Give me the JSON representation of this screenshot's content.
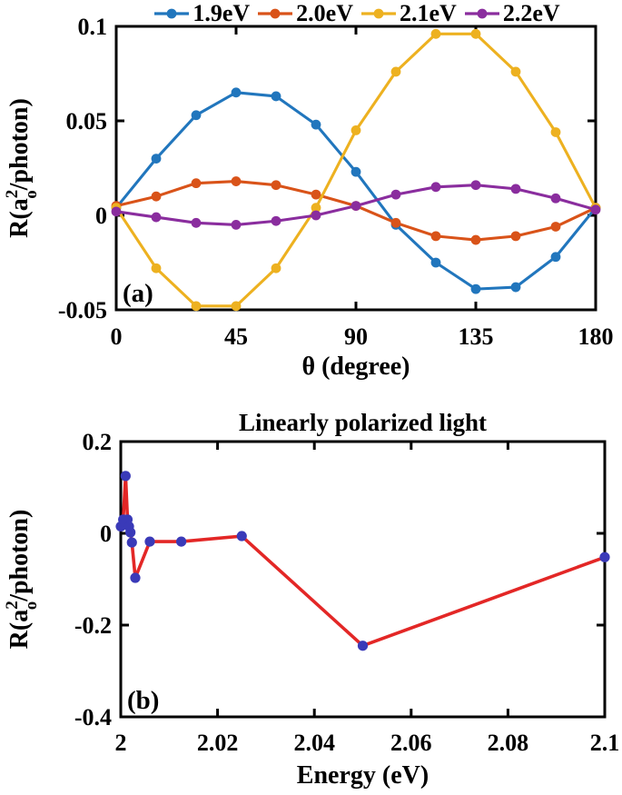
{
  "chart_data": [
    {
      "type": "line",
      "panel": "a",
      "corner_label": "(a)",
      "xlabel": "θ (degree)",
      "ylabel": {
        "prefix": "R(a",
        "sup": "2",
        "sub": "o",
        "suffix": "/photon)"
      },
      "x": [
        0,
        15,
        30,
        45,
        60,
        75,
        90,
        105,
        120,
        135,
        150,
        165,
        180
      ],
      "series": [
        {
          "name": "1.9eV",
          "color": "#2176BD",
          "values": [
            0.004,
            0.03,
            0.053,
            0.065,
            0.063,
            0.048,
            0.023,
            -0.005,
            -0.025,
            -0.039,
            -0.038,
            -0.022,
            0.004
          ]
        },
        {
          "name": "2.0eV",
          "color": "#D95319",
          "values": [
            0.005,
            0.01,
            0.017,
            0.018,
            0.016,
            0.011,
            0.005,
            -0.004,
            -0.011,
            -0.013,
            -0.011,
            -0.006,
            0.004
          ]
        },
        {
          "name": "2.1eV",
          "color": "#EDB120",
          "values": [
            0.004,
            -0.028,
            -0.048,
            -0.048,
            -0.028,
            0.004,
            0.045,
            0.076,
            0.096,
            0.096,
            0.076,
            0.044,
            0.004
          ]
        },
        {
          "name": "2.2eV",
          "color": "#8A2D9E",
          "values": [
            0.002,
            -0.001,
            -0.004,
            -0.005,
            -0.003,
            0.0,
            0.005,
            0.011,
            0.015,
            0.016,
            0.014,
            0.009,
            0.003
          ]
        }
      ],
      "xlim": [
        0,
        180
      ],
      "ylim": [
        -0.05,
        0.1
      ],
      "xticks": [
        0,
        45,
        90,
        135,
        180
      ],
      "xtick_labels": [
        "0",
        "45",
        "90",
        "135",
        "180"
      ],
      "yticks": [
        0.1,
        0.05,
        0,
        -0.05
      ],
      "ytick_labels": [
        "0.1",
        "0.05",
        "0",
        "-0.05"
      ],
      "legend_position": "top",
      "grid": false
    },
    {
      "type": "line",
      "panel": "b",
      "title": "Linearly polarized light",
      "corner_label": "(b)",
      "xlabel": "Energy (eV)",
      "ylabel": {
        "prefix": "R(a",
        "sup": "2",
        "sub": "o",
        "suffix": "/photon)"
      },
      "points": {
        "x": [
          2.0,
          2.0005,
          2.001,
          2.0014,
          2.0017,
          2.002,
          2.0023,
          2.003,
          2.006,
          2.0125,
          2.025,
          2.05,
          2.1
        ],
        "y": [
          0.015,
          0.03,
          0.125,
          0.03,
          0.015,
          0.002,
          -0.02,
          -0.097,
          -0.018,
          -0.018,
          -0.006,
          -0.245,
          -0.052
        ]
      },
      "line_color": "#E32726",
      "marker_color": "#3A3AB8",
      "xlim": [
        2,
        2.1
      ],
      "ylim": [
        -0.4,
        0.2
      ],
      "xticks": [
        2,
        2.02,
        2.04,
        2.06,
        2.08,
        2.1
      ],
      "xtick_labels": [
        "2",
        "2.02",
        "2.04",
        "2.06",
        "2.08",
        "2.1"
      ],
      "yticks": [
        0.2,
        0,
        -0.2,
        -0.4
      ],
      "ytick_labels": [
        "0.2",
        "0",
        "-0.2",
        "-0.4"
      ],
      "grid": false
    }
  ],
  "frame_color": "#000000",
  "text_color": "#000000"
}
